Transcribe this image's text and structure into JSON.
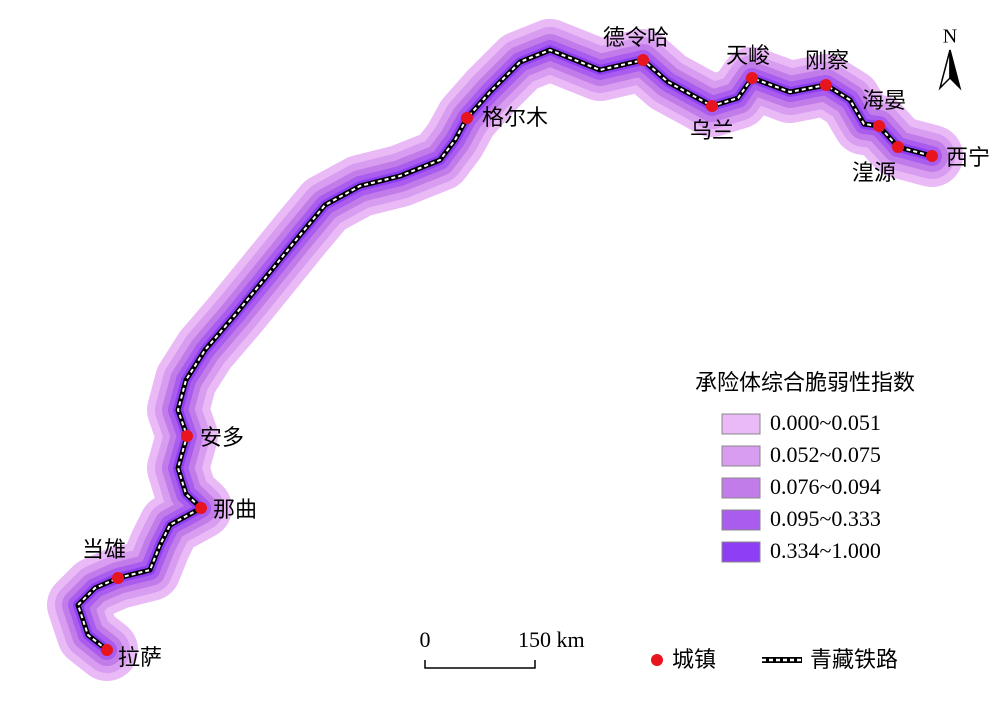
{
  "cities": [
    "拉萨",
    "当雄",
    "那曲",
    "安多",
    "格尔木",
    "德令哈",
    "乌兰",
    "天峻",
    "刚察",
    "海晏",
    "湟源",
    "西宁"
  ],
  "legend": {
    "title": "承险体综合脆弱性指数",
    "classes": [
      {
        "label": "0.000~0.051",
        "color": "#e9baf6"
      },
      {
        "label": "0.052~0.075",
        "color": "#d89cf0"
      },
      {
        "label": "0.076~0.094",
        "color": "#c27ce9"
      },
      {
        "label": "0.095~0.333",
        "color": "#a95ced"
      },
      {
        "label": "0.334~1.000",
        "color": "#8e3ef4"
      }
    ]
  },
  "scale_bar": {
    "start": "0",
    "end": "150 km"
  },
  "north": "N",
  "symbols": {
    "town": "城镇",
    "railway": "青藏铁路"
  }
}
